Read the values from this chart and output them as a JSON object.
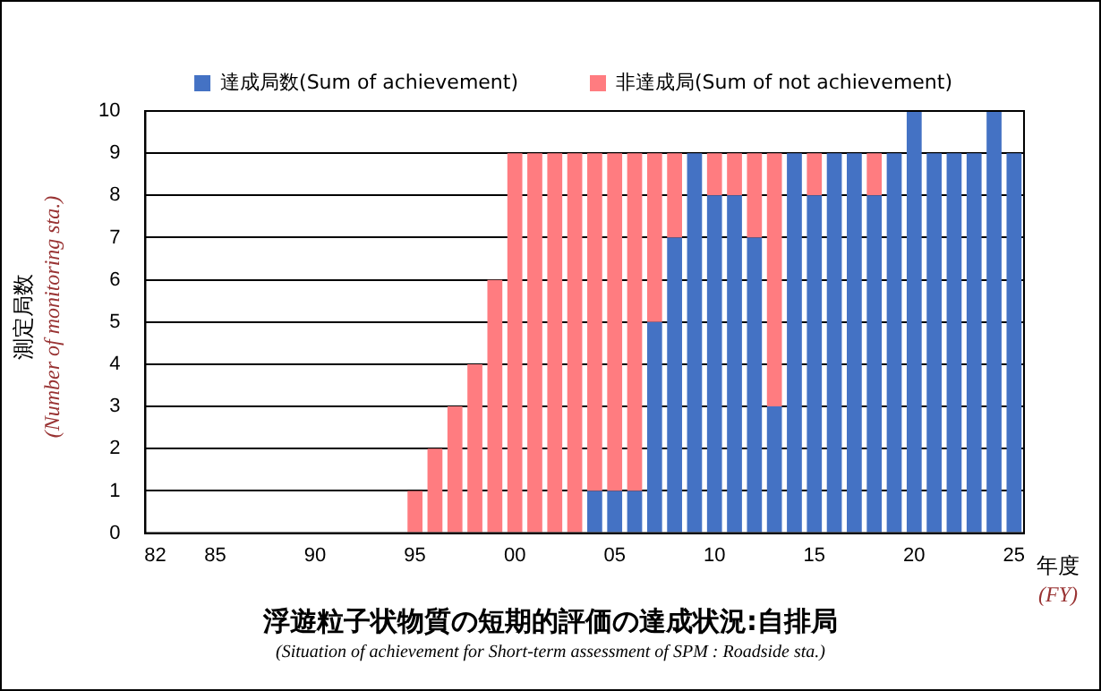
{
  "chart_data": {
    "type": "bar",
    "stacked": true,
    "title": "浮遊粒子状物質の短期的評価の達成状況:自排局",
    "subtitle": "(Situation of achievement for Short-term assessment of SPM : Roadside sta.)",
    "ylabel": "測定局数\n(Number of monitoring sta.)",
    "xlabel": "年度\n(FY)",
    "categories": [
      "82",
      null,
      null,
      "85",
      null,
      null,
      null,
      null,
      "90",
      null,
      null,
      null,
      null,
      "95",
      null,
      null,
      null,
      null,
      "00",
      null,
      null,
      null,
      null,
      "05",
      null,
      null,
      null,
      null,
      "10",
      null,
      null,
      null,
      null,
      "15",
      null,
      null,
      null,
      null,
      "20",
      null,
      null,
      null,
      null,
      "25"
    ],
    "series": [
      {
        "name": "達成局数(Sum of achievement)",
        "color": "#4472c4",
        "values": [
          0,
          0,
          0,
          0,
          0,
          0,
          0,
          0,
          0,
          0,
          0,
          0,
          0,
          0,
          0,
          0,
          0,
          0,
          0,
          0,
          0,
          0,
          1,
          1,
          1,
          5,
          7,
          9,
          8,
          8,
          7,
          3,
          9,
          8,
          9,
          9,
          8,
          9,
          10,
          9,
          9,
          9,
          10,
          9
        ]
      },
      {
        "name": "非達成局(Sum of not achievement)",
        "color": "#ff7c80",
        "values": [
          0,
          0,
          0,
          0,
          0,
          0,
          0,
          0,
          0,
          0,
          0,
          0,
          0,
          1,
          2,
          3,
          4,
          6,
          9,
          9,
          9,
          9,
          8,
          8,
          8,
          4,
          2,
          0,
          1,
          1,
          2,
          6,
          0,
          1,
          0,
          0,
          1,
          0,
          0,
          0,
          0,
          0,
          0,
          0
        ]
      }
    ],
    "ylim": [
      0,
      10
    ],
    "yticks": [
      0,
      1,
      2,
      3,
      4,
      5,
      6,
      7,
      8,
      9,
      10
    ],
    "grid": "y",
    "legend": "top"
  }
}
